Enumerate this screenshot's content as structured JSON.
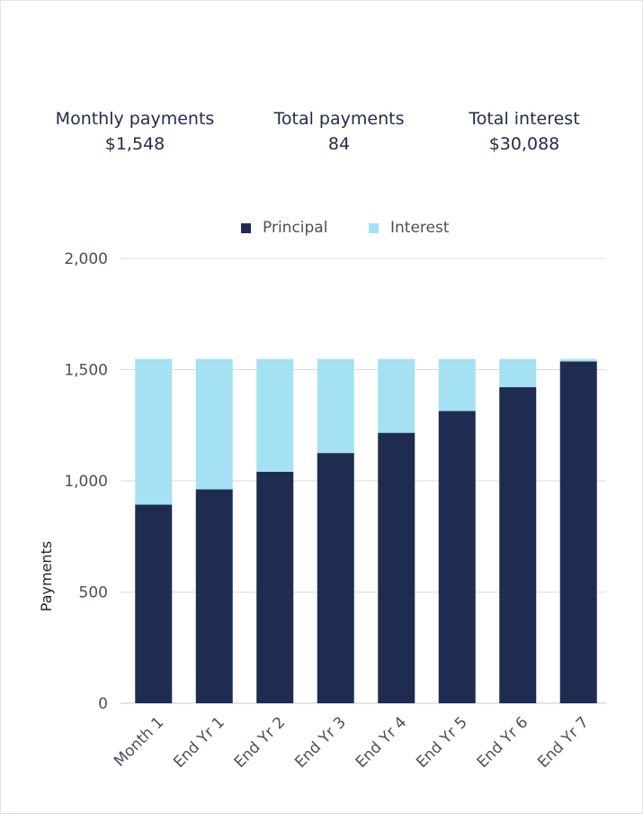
{
  "summary": {
    "monthly_label": "Monthly payments",
    "monthly_value": "$1,548",
    "total_payments_label": "Total payments",
    "total_payments_value": "84",
    "total_interest_label": "Total interest",
    "total_interest_value": "$30,088"
  },
  "colors": {
    "principal": "#1f2c52",
    "interest": "#a3e1f3",
    "grid": "#d9dbe1",
    "text": "#222c4f"
  },
  "chart_data": {
    "type": "bar",
    "stacked": true,
    "categories": [
      "Month 1",
      "End Yr 1",
      "End Yr 2",
      "End Yr 3",
      "End Yr 4",
      "End Yr 5",
      "End Yr 6",
      "End Yr 7"
    ],
    "series": [
      {
        "name": "Principal",
        "values": [
          893,
          962,
          1041,
          1125,
          1216,
          1314,
          1421,
          1537
        ]
      },
      {
        "name": "Interest",
        "values": [
          655,
          586,
          507,
          423,
          332,
          234,
          127,
          11
        ]
      }
    ],
    "ylabel": "Payments",
    "ylim": [
      0,
      2000
    ],
    "yticks": [
      "0",
      "500",
      "1,000",
      "1,500",
      "2,000"
    ],
    "ytick_values": [
      0,
      500,
      1000,
      1500,
      2000
    ],
    "grid": true,
    "legend": "top-center"
  }
}
